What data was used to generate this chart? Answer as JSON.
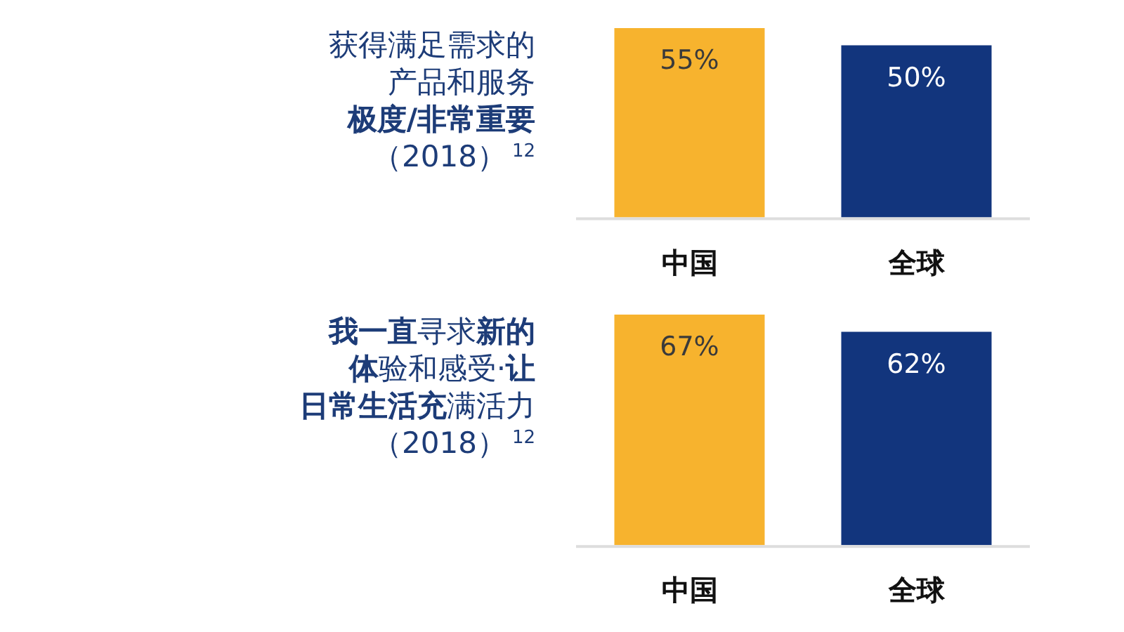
{
  "chart_data": [
    {
      "type": "bar",
      "title": "获得满足需求的产品和服务极度/非常重要（2018）$^{12}$",
      "categories": [
        "中国",
        "全球"
      ],
      "values": [
        55,
        50
      ],
      "colors": [
        "#f7b32e",
        "#12357d"
      ],
      "value_labels": [
        "55%",
        "50%"
      ]
    },
    {
      "type": "bar",
      "title": "我一直寻求新的体验和感受·让日常生活充满活力（2018）$^{12}$",
      "categories": [
        "中国",
        "全球"
      ],
      "values": [
        67,
        62
      ],
      "colors": [
        "#f7b32e",
        "#12357d"
      ],
      "value_labels": [
        "67%",
        "62%"
      ]
    }
  ]
}
